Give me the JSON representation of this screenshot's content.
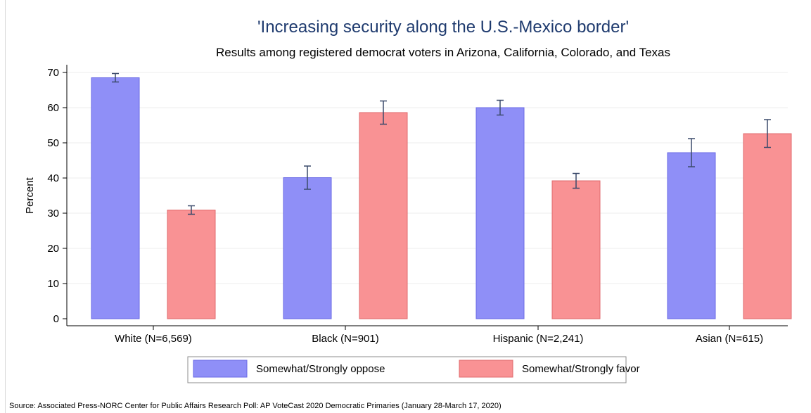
{
  "chart_data": {
    "type": "bar",
    "title": "'Increasing security along the U.S.-Mexico border'",
    "subtitle": "Results among registered democrat voters in Arizona, California, Colorado, and Texas",
    "ylabel": "Percent",
    "xlabel": "",
    "ylim": [
      0,
      70
    ],
    "yticks": [
      "0",
      "10",
      "20",
      "30",
      "40",
      "50",
      "60",
      "70"
    ],
    "grid": true,
    "legend_position": "bottom",
    "categories": [
      "White (N=6,569)",
      "Black (N=901)",
      "Hispanic (N=2,241)",
      "Asian (N=615)"
    ],
    "series": [
      {
        "name": "Somewhat/Strongly oppose",
        "color": "#8f8ff7",
        "edge": "#6a6ae6",
        "values": [
          68.5,
          40.1,
          60.0,
          47.2
        ],
        "ci_low": [
          67.3,
          36.8,
          57.9,
          43.2
        ],
        "ci_high": [
          69.7,
          43.4,
          62.1,
          51.2
        ]
      },
      {
        "name": "Somewhat/Strongly favor",
        "color": "#f99294",
        "edge": "#e06a6c",
        "values": [
          30.9,
          58.6,
          39.2,
          52.6
        ],
        "ci_low": [
          29.7,
          55.3,
          37.1,
          48.7
        ],
        "ci_high": [
          32.1,
          61.9,
          41.3,
          56.6
        ]
      }
    ],
    "source": "Source: Associated Press-NORC Center for Public Affairs Research Poll: AP VoteCast 2020 Democratic Primaries (January 28-March 17, 2020)"
  }
}
